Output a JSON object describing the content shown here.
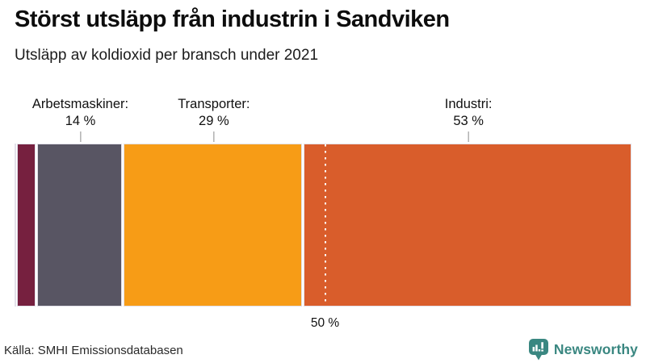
{
  "chart_data": {
    "type": "bar",
    "orientation": "horizontal-stacked-100pct",
    "title": "Störst utsläpp från industrin i Sandviken",
    "subtitle": "Utsläpp av koldioxid per bransch under 2021",
    "unit": "%",
    "segments": [
      {
        "label": "",
        "value_pct": 0.4,
        "color": "#2b2836",
        "labeled": false
      },
      {
        "label": "",
        "value_pct": 3.2,
        "color": "#76203f",
        "labeled": false
      },
      {
        "label": "Arbetsmaskiner",
        "display_value": "14 %",
        "value_pct": 14,
        "color": "#585563",
        "labeled": true
      },
      {
        "label": "Transporter",
        "display_value": "29 %",
        "value_pct": 29,
        "color": "#f79c16",
        "labeled": true
      },
      {
        "label": "Industri",
        "display_value": "53 %",
        "value_pct": 53,
        "color": "#d95d2b",
        "labeled": true
      }
    ],
    "reference_line": {
      "position_pct": 50,
      "label": "50 %",
      "style": "dotted-white"
    },
    "source": "Källa: SMHI Emissionsdatabasen",
    "legend": "none",
    "grid": "off"
  },
  "footer": {
    "brand": "Newsworthy",
    "brand_color": "#3a8781",
    "logo": "bar-chart-speech-bubble-icon"
  }
}
